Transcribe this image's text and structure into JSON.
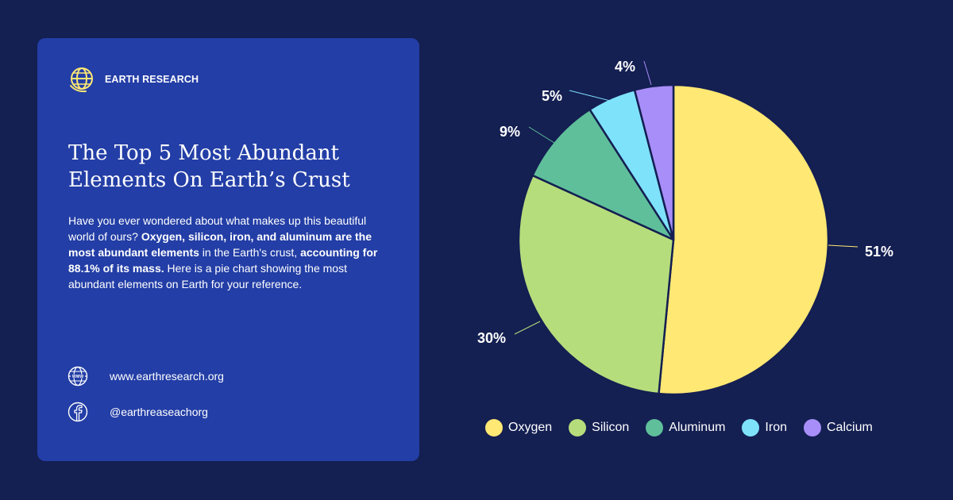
{
  "brand": {
    "name": "EARTH RESEARCH",
    "icon": "globe-logo-icon",
    "color": "#ffe873"
  },
  "card": {
    "title": "The Top 5 Most Abundant Elements On Earth’s Crust",
    "intro_part1": "Have you ever wondered about what makes up this beautiful world of ours? ",
    "intro_bold1": "Oxygen, silicon, iron, and aluminum are the most abundant elements",
    "intro_part2": " in the Earth's crust, ",
    "intro_bold2": "accounting for 88.1% of its mass.",
    "intro_part3": " Here is a pie chart showing the most abundant elements on Earth for your reference."
  },
  "contact": {
    "website": "www.earthresearch.org",
    "website_icon": "www-globe-icon",
    "social": "@earthreaseachorg",
    "social_icon": "facebook-icon"
  },
  "colors": {
    "background": "#141f52",
    "card": "#233ea6",
    "text": "#ffffff"
  },
  "chart_data": {
    "type": "pie",
    "title": "",
    "categories": [
      "Oxygen",
      "Silicon",
      "Aluminum",
      "Iron",
      "Calcium"
    ],
    "values": [
      51,
      30,
      9,
      5,
      4
    ],
    "labels": [
      "51%",
      "30%",
      "9%",
      "5%",
      "4%"
    ],
    "colors": [
      "#ffe873",
      "#b6dd7b",
      "#5fbf9a",
      "#7fe2fb",
      "#a88ef9"
    ],
    "start_angle": "12 o'clock",
    "direction": "clockwise",
    "legend_position": "bottom"
  }
}
